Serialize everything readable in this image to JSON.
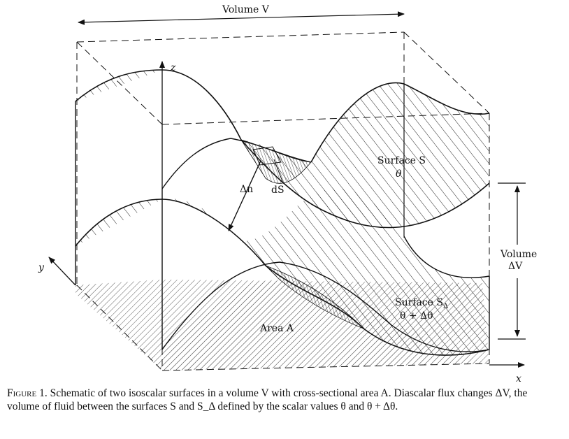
{
  "labels": {
    "volume_v": "Volume V",
    "z_axis": "z",
    "y_axis": "y",
    "x_axis": "x",
    "delta_n": "Δn",
    "ds": "dS",
    "surface_s": "Surface S",
    "theta": "θ",
    "volume_dv_word": "Volume",
    "volume_dv_sym": "ΔV",
    "surface_sd": "Surface S",
    "surface_sd_sub": "Δ",
    "theta_plus": "θ + Δθ",
    "area_a": "Area A"
  },
  "caption": {
    "figure_label": "Figure 1.",
    "text": "Schematic of two isoscalar surfaces in a volume V with cross-sectional area A. Diascalar flux changes ΔV, the volume of fluid between the surfaces S and S_Δ defined by the scalar values θ and θ + Δθ."
  },
  "colors": {
    "ink": "#111111",
    "hatch": "#333333",
    "background": "#ffffff"
  }
}
